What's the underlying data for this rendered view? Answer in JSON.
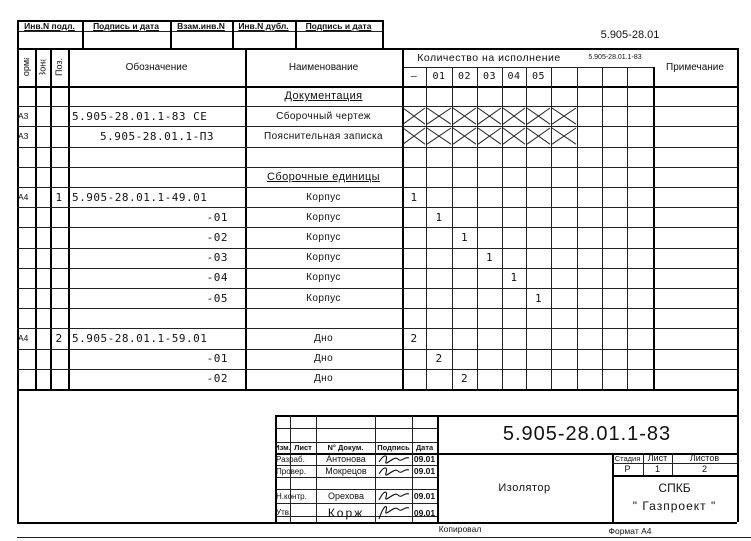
{
  "top_stamp": {
    "labels": [
      "Инв.N подл.",
      "Подпись и дата",
      "Взам.инв.N",
      "Инв.N дубл.",
      "Подпись и дата"
    ]
  },
  "sheet_code": "5.905-28.01",
  "header": {
    "format": "Формат",
    "zone": "Зона",
    "pos": "Поз.",
    "designation": "Обозначение",
    "name": "Наименование",
    "qty_title": "Количество на исполнение",
    "qty_doc": "5.905-28.01.1-83",
    "qty_cols": [
      "—",
      "01",
      "02",
      "03",
      "04",
      "05",
      "",
      "",
      "",
      ""
    ],
    "note": "Примечание"
  },
  "rows": [
    {
      "format": "",
      "pos": "",
      "designation": "",
      "name": "Документация",
      "section": true,
      "qty": []
    },
    {
      "format": "А3",
      "pos": "",
      "designation": "5.905-28.01.1-83 СЕ",
      "name": "Сборочный чертеж",
      "crossed": true,
      "qty": []
    },
    {
      "format": "А3",
      "pos": "",
      "designation": "5.905-28.01.1-ПЗ",
      "name": "Пояснительная записка",
      "crossed": true,
      "indent": true,
      "qty": []
    },
    {
      "format": "",
      "pos": "",
      "designation": "",
      "name": "",
      "qty": []
    },
    {
      "format": "",
      "pos": "",
      "designation": "",
      "name": "Сборочные единицы",
      "section": true,
      "qty": []
    },
    {
      "format": "А4",
      "pos": "1",
      "designation": "5.905-28.01.1-49.01",
      "name": "Корпус",
      "qty": [
        "1",
        "",
        "",
        "",
        "",
        ""
      ]
    },
    {
      "format": "",
      "pos": "",
      "designation": "-01",
      "name": "Корпус",
      "suffix": true,
      "qty": [
        "",
        "1",
        "",
        "",
        "",
        ""
      ]
    },
    {
      "format": "",
      "pos": "",
      "designation": "-02",
      "name": "Корпус",
      "suffix": true,
      "qty": [
        "",
        "",
        "1",
        "",
        "",
        ""
      ]
    },
    {
      "format": "",
      "pos": "",
      "designation": "-03",
      "name": "Корпус",
      "suffix": true,
      "qty": [
        "",
        "",
        "",
        "1",
        "",
        ""
      ]
    },
    {
      "format": "",
      "pos": "",
      "designation": "-04",
      "name": "Корпус",
      "suffix": true,
      "qty": [
        "",
        "",
        "",
        "",
        "1",
        ""
      ]
    },
    {
      "format": "",
      "pos": "",
      "designation": "-05",
      "name": "Корпус",
      "suffix": true,
      "qty": [
        "",
        "",
        "",
        "",
        "",
        "1"
      ]
    },
    {
      "format": "",
      "pos": "",
      "designation": "",
      "name": "",
      "qty": []
    },
    {
      "format": "А4",
      "pos": "2",
      "designation": "5.905-28.01.1-59.01",
      "name": "Дно",
      "qty": [
        "2",
        "",
        "",
        "",
        "",
        ""
      ]
    },
    {
      "format": "",
      "pos": "",
      "designation": "-01",
      "name": "Дно",
      "suffix": true,
      "qty": [
        "",
        "2",
        "",
        "",
        "",
        ""
      ]
    },
    {
      "format": "",
      "pos": "",
      "designation": "-02",
      "name": "Дно",
      "suffix": true,
      "qty": [
        "",
        "",
        "2",
        "",
        "",
        ""
      ]
    }
  ],
  "title_block": {
    "col_headers": [
      "Изм.",
      "Лист",
      "N° Докум.",
      "Подпись",
      "Дата"
    ],
    "signers": [
      {
        "role": "Разраб.",
        "name": "Антонова",
        "date": "09.01"
      },
      {
        "role": "Провер.",
        "name": "Мокрецов",
        "date": "09.01"
      },
      {
        "role": "",
        "name": "",
        "date": ""
      },
      {
        "role": "Н.контр.",
        "name": "Орехова",
        "date": "09.01"
      },
      {
        "role": "Утв.",
        "name": "Корж",
        "date": "09.01"
      }
    ],
    "designation": "5.905-28.01.1-83",
    "item_name": "Изолятор",
    "stage_label": "Стадия",
    "sheet_label": "Лист",
    "sheets_label": "Листов",
    "stage": "Р",
    "sheet": "1",
    "sheets": "2",
    "org_line1": "СПКБ",
    "org_line2": "\" Газпроект \""
  },
  "footer": {
    "copied": "Копировал",
    "format": "Формат А4"
  }
}
